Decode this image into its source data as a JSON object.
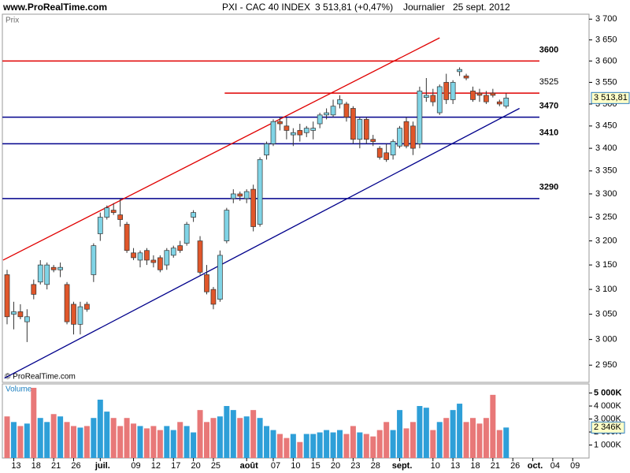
{
  "chart_data": {
    "type": "candlestick",
    "site": "www.ProRealTime.com",
    "title": "PXI - CAC 40 INDEX",
    "last": "3 513,81 (+0,47%)",
    "period": "Journalier",
    "date": "25 sept. 2012",
    "price_panel": "Prix",
    "volume_panel": "Volume",
    "copyright": "© ProRealTime.com",
    "last_price_label": "3 513,81",
    "last_volume_label": "2 346K",
    "log": true,
    "up_color": "#80d4e6",
    "down_color": "#e0562a",
    "volume_up_color": "#2e9fd8",
    "volume_down_color": "#e87878",
    "categories": [
      null,
      "13",
      null,
      null,
      "18",
      null,
      null,
      "21",
      null,
      null,
      "26",
      null,
      null,
      null,
      "juil.",
      null,
      null,
      null,
      null,
      "09",
      null,
      null,
      "12",
      null,
      null,
      "17",
      null,
      null,
      "20",
      null,
      null,
      "25",
      null,
      null,
      null,
      null,
      "août",
      null,
      null,
      null,
      "07",
      null,
      null,
      "10",
      null,
      null,
      "15",
      null,
      null,
      "20",
      null,
      null,
      "23",
      null,
      null,
      "28",
      null,
      null,
      null,
      "sept.",
      null,
      null,
      null,
      null,
      "10",
      null,
      null,
      "13",
      null,
      null,
      "18",
      null,
      null,
      "21",
      null,
      null,
      "26",
      null,
      null,
      "oct.",
      null,
      null,
      "04",
      null,
      null,
      "09",
      null,
      null
    ],
    "month_labels": [
      "juil.",
      "août",
      "sept.",
      "oct."
    ],
    "open": [
      3130,
      3050,
      3055,
      3035,
      3110,
      3115,
      3110,
      3145,
      3140,
      3110,
      3070,
      3030,
      3070,
      3130,
      3215,
      3250,
      3265,
      3255,
      3235,
      3175,
      3160,
      3180,
      3160,
      3165,
      3150,
      3170,
      3190,
      3195,
      3250,
      3200,
      3130,
      3100,
      3080,
      3200,
      3290,
      3300,
      3290,
      3310,
      3235,
      3385,
      3410,
      3460,
      3450,
      3430,
      3440,
      3435,
      3440,
      3455,
      3475,
      3475,
      3500,
      3500,
      3490,
      3420,
      3465,
      3420,
      3400,
      3390,
      3385,
      3405,
      3460,
      3450,
      3410,
      3515,
      3520,
      3480,
      3550,
      3510,
      3575,
      3565,
      3530,
      3525,
      3520,
      3525,
      3505,
      3495,
      null,
      null,
      null,
      null,
      null,
      null,
      null,
      null,
      null,
      null,
      null,
      null
    ],
    "high": [
      3140,
      3075,
      3070,
      3060,
      3120,
      3160,
      3155,
      3150,
      3155,
      3115,
      3075,
      3075,
      3075,
      3195,
      3260,
      3275,
      3280,
      3290,
      3240,
      3185,
      3180,
      3185,
      3170,
      3170,
      3185,
      3190,
      3200,
      3240,
      3265,
      3210,
      3150,
      3105,
      3180,
      3270,
      3310,
      3305,
      3310,
      3320,
      3380,
      3415,
      3465,
      3470,
      3470,
      3445,
      3455,
      3450,
      3460,
      3480,
      3490,
      3510,
      3520,
      3505,
      3495,
      3470,
      3470,
      3430,
      3405,
      3410,
      3420,
      3450,
      3470,
      3460,
      3540,
      3560,
      3535,
      3545,
      3570,
      3555,
      3585,
      3570,
      3540,
      3535,
      3530,
      3535,
      3510,
      3525,
      null,
      null,
      null,
      null,
      null,
      null,
      null,
      null,
      null,
      null,
      null,
      null
    ],
    "low": [
      3030,
      3020,
      3040,
      2995,
      3080,
      3110,
      3100,
      3135,
      3125,
      3030,
      3010,
      3010,
      3055,
      3115,
      3200,
      3245,
      3255,
      3230,
      3175,
      3160,
      3145,
      3150,
      3145,
      3135,
      3140,
      3165,
      3175,
      3190,
      3240,
      3130,
      3090,
      3060,
      3075,
      3195,
      3280,
      3285,
      3280,
      3220,
      3230,
      3375,
      3405,
      3440,
      3420,
      3405,
      3415,
      3425,
      3420,
      3445,
      3465,
      3470,
      3490,
      3460,
      3410,
      3400,
      3410,
      3405,
      3375,
      3370,
      3375,
      3400,
      3400,
      3385,
      3400,
      3505,
      3495,
      3475,
      3500,
      3500,
      3565,
      3555,
      3505,
      3505,
      3500,
      3515,
      3495,
      3490,
      null,
      null,
      null,
      null,
      null,
      null,
      null,
      null,
      null,
      null,
      null,
      null
    ],
    "close": [
      3045,
      3055,
      3045,
      3045,
      3090,
      3150,
      3150,
      3140,
      3145,
      3035,
      3030,
      3065,
      3060,
      3190,
      3250,
      3270,
      3260,
      3245,
      3180,
      3165,
      3175,
      3160,
      3155,
      3140,
      3180,
      3185,
      3180,
      3235,
      3260,
      3135,
      3095,
      3070,
      3170,
      3265,
      3300,
      3295,
      3305,
      3230,
      3375,
      3410,
      3460,
      3455,
      3440,
      3435,
      3430,
      3445,
      3445,
      3475,
      3480,
      3495,
      3510,
      3470,
      3420,
      3465,
      3420,
      3415,
      3380,
      3375,
      3415,
      3445,
      3405,
      3400,
      3530,
      3520,
      3505,
      3540,
      3510,
      3550,
      3580,
      3560,
      3510,
      3520,
      3505,
      3520,
      3500,
      3513.81,
      null,
      null,
      null,
      null,
      null,
      null,
      null,
      null,
      null,
      null,
      null,
      null
    ],
    "volume": [
      3200,
      2770,
      2460,
      2650,
      5400,
      3080,
      2770,
      3380,
      3200,
      2770,
      2460,
      2340,
      2460,
      3080,
      4490,
      3570,
      3080,
      2460,
      3080,
      2650,
      2460,
      2280,
      2460,
      2150,
      2460,
      2150,
      2770,
      2460,
      1970,
      3690,
      2770,
      3080,
      3200,
      4000,
      3690,
      3080,
      3200,
      3690,
      3080,
      2460,
      2150,
      1850,
      1540,
      1850,
      1230,
      1850,
      1850,
      1970,
      2150,
      1970,
      2150,
      1850,
      2460,
      1970,
      1850,
      1660,
      2150,
      2770,
      2150,
      3690,
      2280,
      2770,
      4000,
      3870,
      2150,
      2770,
      3080,
      3690,
      4180,
      2770,
      3080,
      2650,
      3080,
      4860,
      2150,
      2346,
      null,
      null,
      null,
      null,
      null,
      null,
      null,
      null,
      null,
      null,
      null,
      null
    ],
    "ylim": [
      2917,
      3712
    ],
    "yticks": [
      {
        "value": 3700,
        "label": "3 700"
      },
      {
        "value": 3650,
        "label": "3 650"
      },
      {
        "value": 3600,
        "label": "3 600"
      },
      {
        "value": 3550,
        "label": "3 550"
      },
      {
        "value": 3500,
        "label": "3 500"
      },
      {
        "value": 3450,
        "label": "3 450"
      },
      {
        "value": 3400,
        "label": "3 400"
      },
      {
        "value": 3350,
        "label": "3 350"
      },
      {
        "value": 3300,
        "label": "3 300"
      },
      {
        "value": 3250,
        "label": "3 250"
      },
      {
        "value": 3200,
        "label": "3 200"
      },
      {
        "value": 3150,
        "label": "3 150"
      },
      {
        "value": 3100,
        "label": "3 100"
      },
      {
        "value": 3050,
        "label": "3 050"
      },
      {
        "value": 3000,
        "label": "3 000"
      },
      {
        "value": 2950,
        "label": "2 950"
      }
    ],
    "y2lim": [
      0,
      5700
    ],
    "y2ticks": [
      {
        "value": 5000,
        "label": "5 000K"
      },
      {
        "value": 4000,
        "label": "4 000K"
      },
      {
        "value": 3000,
        "label": "3 000K"
      },
      {
        "value": 2000,
        "label": "2 000K"
      },
      {
        "value": 1000,
        "label": "1 000K"
      }
    ],
    "levels": [
      {
        "value": 3600,
        "color": "#e00000",
        "start": -0.7,
        "bold": true
      },
      {
        "value": 3525,
        "color": "#e00000",
        "start": 32.7,
        "bold": false
      },
      {
        "value": 3470,
        "color": "#00008b",
        "start": -0.7,
        "bold": true
      },
      {
        "value": 3410,
        "color": "#00008b",
        "start": -0.7,
        "bold": true
      },
      {
        "value": 3290,
        "color": "#00008b",
        "start": -0.7,
        "bold": true
      }
    ],
    "trend_lines": [
      {
        "color": "#e00000",
        "start": [
          -0.6,
          3160
        ],
        "end": [
          65,
          3655
        ]
      },
      {
        "color": "#00008b",
        "start": [
          -0.4,
          2925
        ],
        "end": [
          77,
          3490
        ]
      }
    ]
  }
}
